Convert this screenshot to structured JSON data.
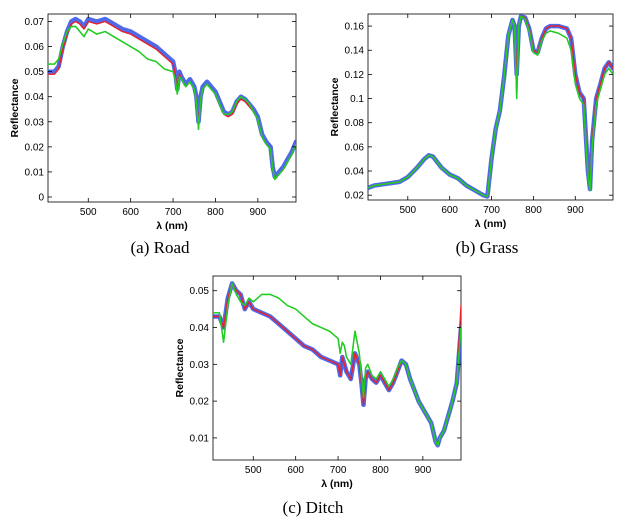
{
  "chart_data": [
    {
      "type": "line",
      "caption": "(a) Road",
      "xlabel": "λ (nm)",
      "ylabel": "Reflectance",
      "xlim": [
        405,
        990
      ],
      "ylim": [
        -0.002,
        0.073
      ],
      "xticks": [
        500,
        600,
        700,
        800,
        900
      ],
      "xtick_labels": [
        "500",
        "600",
        "700",
        "800",
        "900"
      ],
      "yticks": [
        0,
        0.01,
        0.02,
        0.03,
        0.04,
        0.05,
        0.06,
        0.07
      ],
      "ytick_labels": [
        "0",
        "0.01",
        "0.02",
        "0.03",
        "0.04",
        "0.05",
        "0.06",
        "0.07"
      ],
      "grid": false,
      "series": [
        {
          "color": "#2f4fe6",
          "x": [
            405,
            420,
            430,
            440,
            450,
            460,
            470,
            480,
            490,
            500,
            520,
            540,
            560,
            580,
            600,
            620,
            640,
            660,
            680,
            700,
            705,
            710,
            715,
            720,
            730,
            740,
            750,
            755,
            760,
            765,
            770,
            780,
            790,
            800,
            810,
            820,
            830,
            840,
            850,
            860,
            870,
            880,
            890,
            900,
            910,
            920,
            930,
            935,
            940,
            950,
            960,
            970,
            980,
            990
          ],
          "y": [
            0.05,
            0.05,
            0.052,
            0.06,
            0.066,
            0.07,
            0.071,
            0.07,
            0.068,
            0.071,
            0.07,
            0.071,
            0.069,
            0.067,
            0.066,
            0.064,
            0.062,
            0.06,
            0.057,
            0.054,
            0.05,
            0.043,
            0.05,
            0.048,
            0.045,
            0.047,
            0.044,
            0.04,
            0.03,
            0.04,
            0.044,
            0.046,
            0.044,
            0.042,
            0.038,
            0.034,
            0.033,
            0.034,
            0.038,
            0.04,
            0.039,
            0.037,
            0.035,
            0.032,
            0.025,
            0.022,
            0.02,
            0.012,
            0.008,
            0.01,
            0.012,
            0.015,
            0.018,
            0.022
          ]
        },
        {
          "color": "#e8202a",
          "x": [
            405,
            420,
            430,
            440,
            450,
            460,
            470,
            480,
            490,
            500,
            520,
            540,
            560,
            580,
            600,
            620,
            640,
            660,
            680,
            700,
            705,
            710,
            715,
            720,
            730,
            740,
            750,
            755,
            760,
            765,
            770,
            780,
            790,
            800,
            810,
            820,
            830,
            840,
            850,
            860,
            870,
            880,
            890,
            900,
            910,
            920,
            930,
            935,
            940,
            950,
            960,
            970,
            980,
            990
          ],
          "y": [
            0.049,
            0.049,
            0.051,
            0.059,
            0.065,
            0.069,
            0.07,
            0.069,
            0.067,
            0.07,
            0.069,
            0.07,
            0.068,
            0.066,
            0.065,
            0.063,
            0.061,
            0.059,
            0.056,
            0.053,
            0.049,
            0.042,
            0.049,
            0.047,
            0.044,
            0.046,
            0.043,
            0.039,
            0.029,
            0.039,
            0.043,
            0.045,
            0.043,
            0.041,
            0.037,
            0.033,
            0.032,
            0.033,
            0.037,
            0.039,
            0.038,
            0.036,
            0.034,
            0.031,
            0.024,
            0.021,
            0.019,
            0.011,
            0.007,
            0.009,
            0.011,
            0.014,
            0.017,
            0.021
          ]
        },
        {
          "color": "#22cc22",
          "x": [
            405,
            420,
            430,
            440,
            450,
            460,
            470,
            480,
            490,
            500,
            520,
            540,
            560,
            580,
            600,
            620,
            640,
            660,
            680,
            700,
            705,
            710,
            715,
            720,
            730,
            740,
            750,
            755,
            760,
            765,
            770,
            780,
            790,
            800,
            810,
            820,
            830,
            840,
            850,
            860,
            870,
            880,
            890,
            900,
            910,
            920,
            930,
            935,
            940,
            950,
            960,
            970,
            980,
            990
          ],
          "y": [
            0.053,
            0.053,
            0.055,
            0.061,
            0.066,
            0.068,
            0.068,
            0.066,
            0.064,
            0.067,
            0.065,
            0.066,
            0.064,
            0.062,
            0.06,
            0.058,
            0.055,
            0.054,
            0.051,
            0.05,
            0.047,
            0.041,
            0.048,
            0.047,
            0.044,
            0.046,
            0.043,
            0.038,
            0.027,
            0.039,
            0.043,
            0.045,
            0.043,
            0.041,
            0.037,
            0.033,
            0.033,
            0.034,
            0.038,
            0.04,
            0.039,
            0.037,
            0.034,
            0.031,
            0.024,
            0.021,
            0.019,
            0.011,
            0.007,
            0.009,
            0.011,
            0.014,
            0.017,
            0.021
          ]
        }
      ]
    },
    {
      "type": "line",
      "caption": "(b) Grass",
      "xlabel": "λ (nm)",
      "ylabel": "Reflectance",
      "xlim": [
        405,
        990
      ],
      "ylim": [
        0.016,
        0.17
      ],
      "xticks": [
        500,
        600,
        700,
        800,
        900
      ],
      "xtick_labels": [
        "500",
        "600",
        "700",
        "800",
        "900"
      ],
      "yticks": [
        0.02,
        0.04,
        0.06,
        0.08,
        0.1,
        0.12,
        0.14,
        0.16
      ],
      "ytick_labels": [
        "0.02",
        "0.04",
        "0.06",
        "0.08",
        "0.1",
        "0.12",
        "0.14",
        "0.16"
      ],
      "grid": false,
      "series": [
        {
          "color": "#2f4fe6",
          "x": [
            405,
            420,
            440,
            460,
            480,
            500,
            520,
            540,
            550,
            560,
            580,
            600,
            620,
            640,
            660,
            680,
            690,
            700,
            710,
            720,
            730,
            740,
            750,
            755,
            760,
            765,
            770,
            780,
            790,
            800,
            810,
            820,
            830,
            840,
            860,
            880,
            890,
            900,
            910,
            920,
            930,
            935,
            940,
            950,
            960,
            970,
            980,
            990
          ],
          "y": [
            0.026,
            0.028,
            0.029,
            0.03,
            0.031,
            0.035,
            0.042,
            0.05,
            0.053,
            0.052,
            0.043,
            0.037,
            0.034,
            0.028,
            0.024,
            0.02,
            0.019,
            0.05,
            0.075,
            0.09,
            0.118,
            0.152,
            0.165,
            0.16,
            0.12,
            0.16,
            0.168,
            0.167,
            0.158,
            0.14,
            0.138,
            0.15,
            0.158,
            0.16,
            0.16,
            0.158,
            0.15,
            0.12,
            0.105,
            0.1,
            0.04,
            0.025,
            0.065,
            0.1,
            0.112,
            0.125,
            0.13,
            0.125
          ]
        },
        {
          "color": "#e8202a",
          "x": [
            405,
            420,
            440,
            460,
            480,
            500,
            520,
            540,
            550,
            560,
            580,
            600,
            620,
            640,
            660,
            680,
            690,
            700,
            710,
            720,
            730,
            740,
            750,
            755,
            760,
            765,
            770,
            780,
            790,
            800,
            810,
            820,
            830,
            840,
            860,
            880,
            890,
            900,
            910,
            920,
            930,
            935,
            940,
            950,
            960,
            970,
            980,
            990
          ],
          "y": [
            0.026,
            0.028,
            0.029,
            0.03,
            0.031,
            0.035,
            0.042,
            0.05,
            0.053,
            0.052,
            0.043,
            0.037,
            0.034,
            0.028,
            0.024,
            0.02,
            0.019,
            0.05,
            0.075,
            0.09,
            0.118,
            0.152,
            0.165,
            0.16,
            0.12,
            0.16,
            0.168,
            0.167,
            0.158,
            0.14,
            0.138,
            0.15,
            0.158,
            0.16,
            0.16,
            0.158,
            0.15,
            0.12,
            0.105,
            0.1,
            0.04,
            0.025,
            0.065,
            0.1,
            0.112,
            0.125,
            0.13,
            0.125
          ]
        },
        {
          "color": "#22cc22",
          "x": [
            405,
            420,
            440,
            460,
            480,
            500,
            520,
            540,
            550,
            560,
            580,
            600,
            620,
            640,
            660,
            680,
            690,
            700,
            710,
            720,
            730,
            740,
            750,
            755,
            760,
            765,
            770,
            780,
            790,
            800,
            810,
            820,
            830,
            840,
            860,
            880,
            890,
            900,
            910,
            920,
            930,
            935,
            940,
            950,
            960,
            970,
            980,
            990
          ],
          "y": [
            0.026,
            0.028,
            0.029,
            0.03,
            0.031,
            0.035,
            0.042,
            0.05,
            0.053,
            0.052,
            0.043,
            0.037,
            0.034,
            0.028,
            0.024,
            0.02,
            0.019,
            0.05,
            0.075,
            0.09,
            0.118,
            0.152,
            0.165,
            0.16,
            0.1,
            0.16,
            0.168,
            0.166,
            0.156,
            0.138,
            0.136,
            0.148,
            0.154,
            0.156,
            0.154,
            0.15,
            0.14,
            0.112,
            0.1,
            0.095,
            0.038,
            0.024,
            0.06,
            0.095,
            0.108,
            0.12,
            0.125,
            0.12
          ]
        }
      ]
    },
    {
      "type": "line",
      "caption": "(c) Ditch",
      "xlabel": "λ (nm)",
      "ylabel": "Reflectance",
      "xlim": [
        405,
        990
      ],
      "ylim": [
        0.004,
        0.054
      ],
      "xticks": [
        500,
        600,
        700,
        800,
        900
      ],
      "xtick_labels": [
        "500",
        "600",
        "700",
        "800",
        "900"
      ],
      "yticks": [
        0.01,
        0.02,
        0.03,
        0.04,
        0.05
      ],
      "ytick_labels": [
        "0.01",
        "0.02",
        "0.03",
        "0.04",
        "0.05"
      ],
      "grid": false,
      "series": [
        {
          "color": "#2f4fe6",
          "x": [
            405,
            420,
            430,
            440,
            450,
            460,
            470,
            480,
            490,
            500,
            520,
            540,
            560,
            580,
            600,
            620,
            640,
            660,
            680,
            700,
            705,
            710,
            715,
            720,
            730,
            740,
            750,
            755,
            760,
            765,
            770,
            780,
            790,
            800,
            810,
            820,
            830,
            840,
            850,
            860,
            870,
            880,
            890,
            900,
            910,
            920,
            930,
            935,
            940,
            950,
            960,
            970,
            980,
            990
          ],
          "y": [
            0.043,
            0.043,
            0.04,
            0.048,
            0.052,
            0.05,
            0.049,
            0.045,
            0.047,
            0.045,
            0.044,
            0.043,
            0.041,
            0.039,
            0.037,
            0.035,
            0.034,
            0.032,
            0.031,
            0.03,
            0.027,
            0.032,
            0.03,
            0.028,
            0.026,
            0.033,
            0.03,
            0.025,
            0.019,
            0.026,
            0.028,
            0.026,
            0.025,
            0.027,
            0.025,
            0.023,
            0.025,
            0.028,
            0.031,
            0.03,
            0.026,
            0.023,
            0.02,
            0.018,
            0.016,
            0.014,
            0.009,
            0.008,
            0.01,
            0.012,
            0.016,
            0.02,
            0.025,
            0.04
          ]
        },
        {
          "color": "#e8202a",
          "x": [
            405,
            420,
            430,
            440,
            450,
            460,
            470,
            480,
            490,
            500,
            520,
            540,
            560,
            580,
            600,
            620,
            640,
            660,
            680,
            700,
            705,
            710,
            715,
            720,
            730,
            740,
            750,
            755,
            760,
            765,
            770,
            780,
            790,
            800,
            810,
            820,
            830,
            840,
            850,
            860,
            870,
            880,
            890,
            900,
            910,
            920,
            930,
            935,
            940,
            950,
            960,
            970,
            980,
            990
          ],
          "y": [
            0.043,
            0.043,
            0.04,
            0.048,
            0.052,
            0.05,
            0.049,
            0.045,
            0.047,
            0.045,
            0.044,
            0.043,
            0.041,
            0.039,
            0.037,
            0.035,
            0.034,
            0.032,
            0.031,
            0.03,
            0.027,
            0.032,
            0.03,
            0.028,
            0.026,
            0.033,
            0.03,
            0.025,
            0.019,
            0.026,
            0.028,
            0.026,
            0.025,
            0.027,
            0.025,
            0.023,
            0.025,
            0.028,
            0.031,
            0.03,
            0.026,
            0.023,
            0.02,
            0.018,
            0.016,
            0.014,
            0.009,
            0.008,
            0.01,
            0.012,
            0.016,
            0.02,
            0.025,
            0.046
          ]
        },
        {
          "color": "#22cc22",
          "x": [
            405,
            420,
            430,
            440,
            450,
            460,
            470,
            480,
            490,
            500,
            520,
            540,
            560,
            580,
            600,
            620,
            640,
            660,
            680,
            700,
            705,
            710,
            715,
            720,
            730,
            740,
            750,
            755,
            760,
            765,
            770,
            780,
            790,
            800,
            810,
            820,
            830,
            840,
            850,
            860,
            870,
            880,
            890,
            900,
            910,
            920,
            930,
            935,
            940,
            950,
            960,
            970,
            980,
            990
          ],
          "y": [
            0.044,
            0.044,
            0.036,
            0.046,
            0.052,
            0.049,
            0.047,
            0.046,
            0.048,
            0.047,
            0.049,
            0.049,
            0.048,
            0.046,
            0.045,
            0.043,
            0.041,
            0.04,
            0.039,
            0.037,
            0.033,
            0.036,
            0.035,
            0.032,
            0.03,
            0.039,
            0.033,
            0.027,
            0.021,
            0.029,
            0.03,
            0.027,
            0.026,
            0.028,
            0.026,
            0.024,
            0.026,
            0.029,
            0.031,
            0.03,
            0.026,
            0.023,
            0.02,
            0.018,
            0.016,
            0.014,
            0.009,
            0.008,
            0.01,
            0.012,
            0.016,
            0.02,
            0.025,
            0.04
          ]
        }
      ]
    }
  ]
}
